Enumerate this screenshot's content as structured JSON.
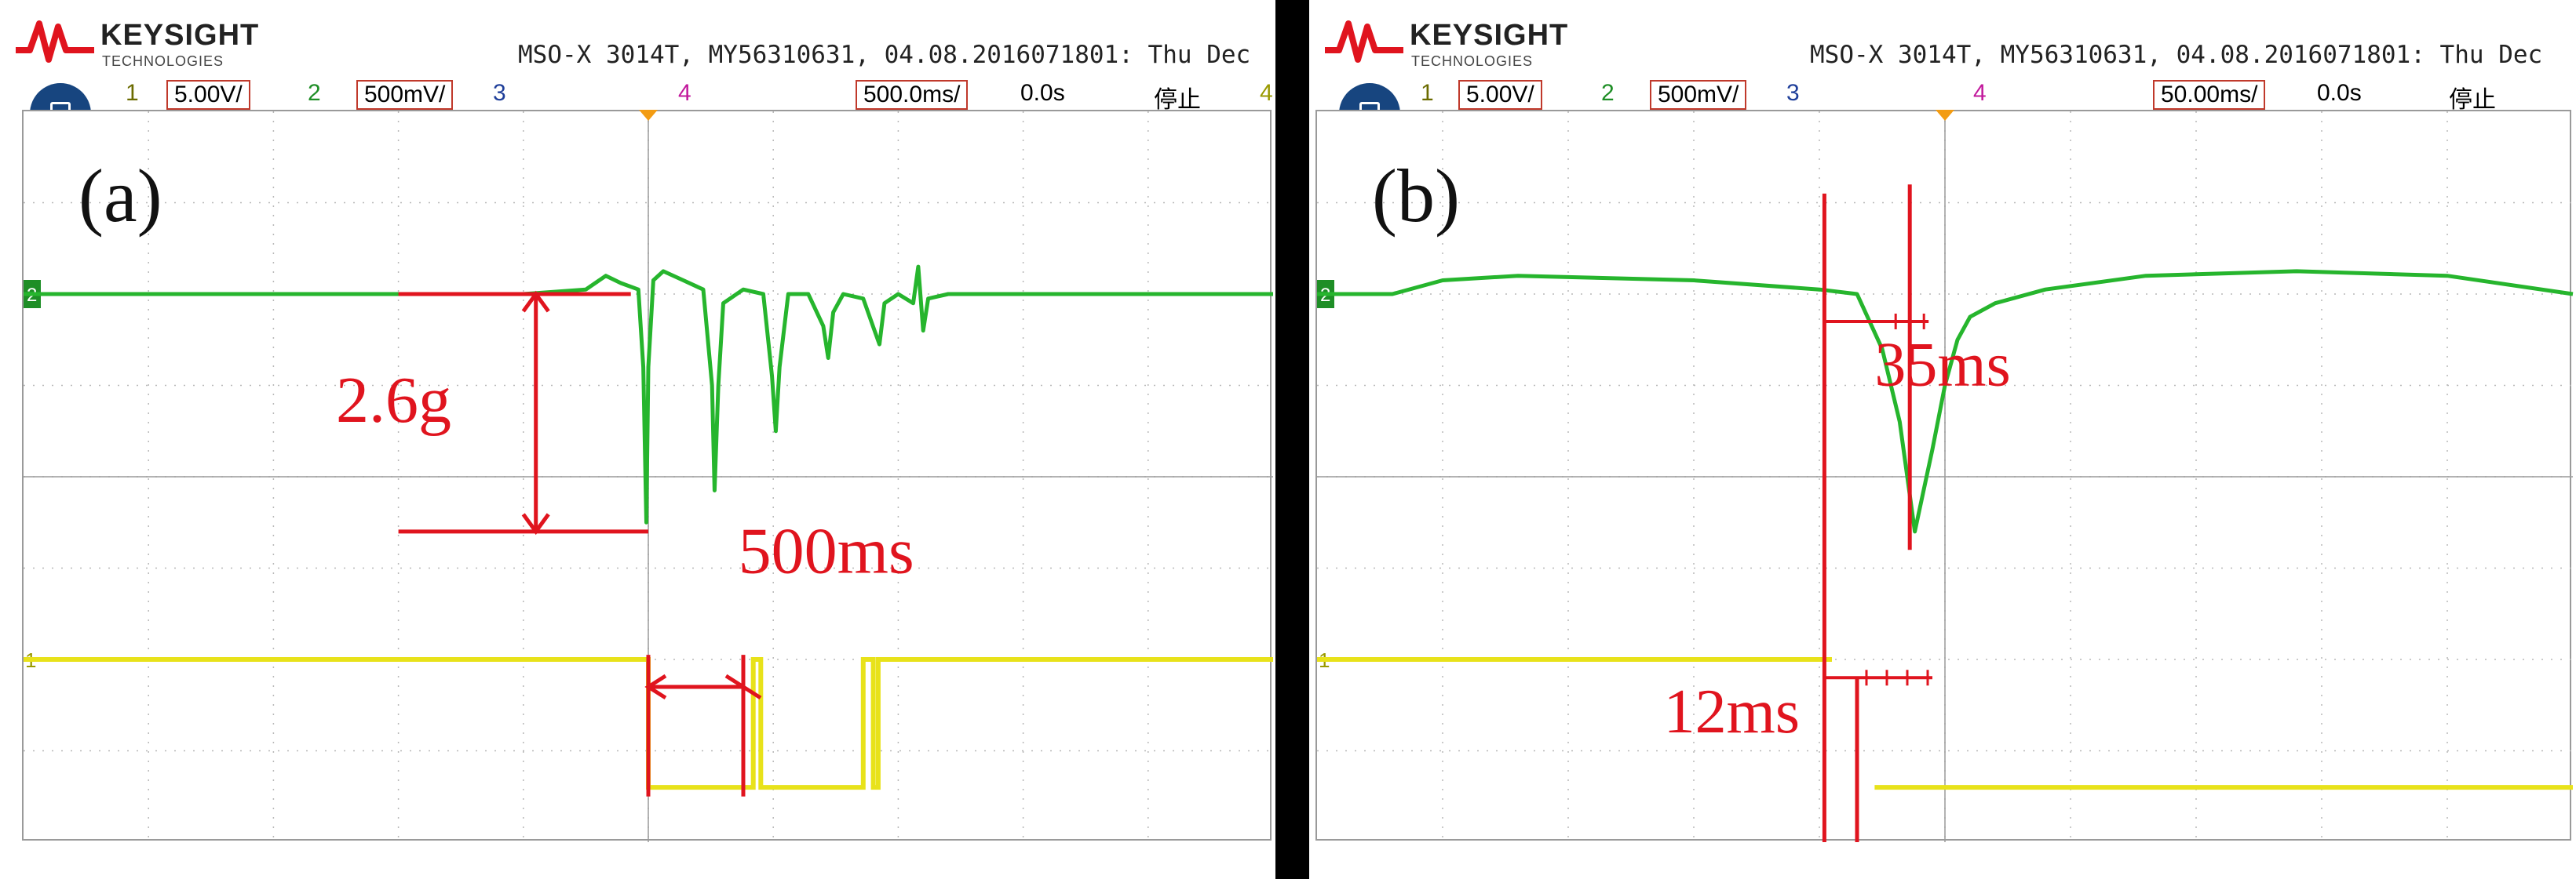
{
  "chart_data": [
    {
      "type": "line",
      "panel_label": "(a)",
      "header": {
        "brand": "KEYSIGHT",
        "brand_sub": "TECHNOLOGIES",
        "device": "MSO-X 3014T, MY56310631, 04.08.2016071801: Thu Dec"
      },
      "status": {
        "ch1_num": "1",
        "ch1_scale": "5.00V/",
        "ch2_num": "2",
        "ch2_scale": "500mV/",
        "ch3_num": "3",
        "ch4_num": "4",
        "timebase": "500.0ms/",
        "delay": "0.0s",
        "run_state": "停止",
        "trigger_num": "4"
      },
      "channel_markers": {
        "ch2": "2",
        "ch1": "1"
      },
      "colors": {
        "ch1": "#e8e21a",
        "ch2": "#26b52d",
        "annotation": "#e0141e",
        "grid": "#b8b8b8"
      },
      "time_per_div_ms": 500,
      "x_divisions": 10,
      "x_range_ms": [
        -2500,
        2500
      ],
      "series": [
        {
          "channel": "2",
          "description_color": "green",
          "baseline_div": 2.0,
          "points_ms_div": [
            [
              -2500,
              2.0
            ],
            [
              -500,
              2.0
            ],
            [
              -250,
              2.05
            ],
            [
              -170,
              2.2
            ],
            [
              -110,
              2.12
            ],
            [
              -40,
              2.05
            ],
            [
              -20,
              1.2
            ],
            [
              -8,
              -0.5
            ],
            [
              0,
              1.2
            ],
            [
              20,
              2.15
            ],
            [
              60,
              2.25
            ],
            [
              140,
              2.15
            ],
            [
              220,
              2.05
            ],
            [
              255,
              1.0
            ],
            [
              265,
              -0.15
            ],
            [
              280,
              1.0
            ],
            [
              300,
              1.9
            ],
            [
              380,
              2.05
            ],
            [
              460,
              2.0
            ],
            [
              495,
              1.1
            ],
            [
              510,
              0.5
            ],
            [
              525,
              1.2
            ],
            [
              560,
              2.0
            ],
            [
              640,
              2.0
            ],
            [
              700,
              1.65
            ],
            [
              720,
              1.3
            ],
            [
              740,
              1.8
            ],
            [
              780,
              2.0
            ],
            [
              860,
              1.95
            ],
            [
              905,
              1.6
            ],
            [
              925,
              1.45
            ],
            [
              945,
              1.9
            ],
            [
              1000,
              2.0
            ],
            [
              1060,
              1.9
            ],
            [
              1080,
              2.3
            ],
            [
              1100,
              1.6
            ],
            [
              1120,
              1.95
            ],
            [
              1200,
              2.0
            ],
            [
              2500,
              2.0
            ]
          ]
        },
        {
          "channel": "1",
          "description_color": "yellow",
          "segments_ms_div": [
            [
              [
                -2500,
                -2.0
              ],
              [
                0,
                -2.0
              ],
              [
                0,
                -3.4
              ],
              [
                420,
                -3.4
              ],
              [
                420,
                -2.0
              ],
              [
                450,
                -2.0
              ],
              [
                450,
                -3.4
              ],
              [
                860,
                -3.4
              ],
              [
                860,
                -2.0
              ],
              [
                900,
                -2.0
              ],
              [
                900,
                -3.4
              ],
              [
                920,
                -3.4
              ],
              [
                920,
                -2.0
              ],
              [
                2500,
                -2.0
              ]
            ]
          ]
        }
      ],
      "annotations": [
        {
          "text": "2.6g",
          "type": "vertical-arrow",
          "from_div": 2.0,
          "to_div": -0.6,
          "at_ms": -450
        },
        {
          "text": "500ms",
          "type": "horizontal-arrow",
          "from_ms": 0,
          "to_ms": 380,
          "at_div": -2.3
        }
      ]
    },
    {
      "type": "line",
      "panel_label": "(b)",
      "header": {
        "brand": "KEYSIGHT",
        "brand_sub": "TECHNOLOGIES",
        "device": "MSO-X 3014T, MY56310631, 04.08.2016071801: Thu Dec"
      },
      "status": {
        "ch1_num": "1",
        "ch1_scale": "5.00V/",
        "ch2_num": "2",
        "ch2_scale": "500mV/",
        "ch3_num": "3",
        "ch4_num": "4",
        "timebase": "50.00ms/",
        "delay": "0.0s",
        "run_state": "停止",
        "trigger_num": ""
      },
      "channel_markers": {
        "ch2": "2",
        "ch1": "1"
      },
      "colors": {
        "ch1": "#e8e21a",
        "ch2": "#26b52d",
        "annotation": "#e0141e",
        "grid": "#b8b8b8"
      },
      "time_per_div_ms": 50,
      "x_divisions": 10,
      "x_range_ms": [
        -250,
        250
      ],
      "series": [
        {
          "channel": "2",
          "description_color": "green",
          "points_ms_div": [
            [
              -250,
              2.0
            ],
            [
              -220,
              2.0
            ],
            [
              -200,
              2.15
            ],
            [
              -170,
              2.2
            ],
            [
              -100,
              2.15
            ],
            [
              -50,
              2.05
            ],
            [
              -35,
              2.0
            ],
            [
              -25,
              1.4
            ],
            [
              -18,
              0.6
            ],
            [
              -12,
              -0.6
            ],
            [
              -5,
              0.3
            ],
            [
              0,
              1.0
            ],
            [
              5,
              1.5
            ],
            [
              10,
              1.75
            ],
            [
              20,
              1.9
            ],
            [
              40,
              2.05
            ],
            [
              80,
              2.2
            ],
            [
              140,
              2.25
            ],
            [
              200,
              2.2
            ],
            [
              250,
              2.0
            ]
          ]
        },
        {
          "channel": "1",
          "description_color": "yellow",
          "segments_ms_div": [
            [
              [
                -250,
                -2.0
              ],
              [
                -45,
                -2.0
              ]
            ],
            [
              [
                -28,
                -3.4
              ],
              [
                250,
                -3.4
              ]
            ]
          ]
        }
      ],
      "annotations": [
        {
          "text": "35ms",
          "type": "interval-marker",
          "from_ms": -48,
          "to_ms": -14,
          "at_div": 1.7
        },
        {
          "text": "12ms",
          "type": "interval-marker",
          "from_ms": -48,
          "to_ms": -35,
          "at_div": -2.2
        }
      ]
    }
  ]
}
